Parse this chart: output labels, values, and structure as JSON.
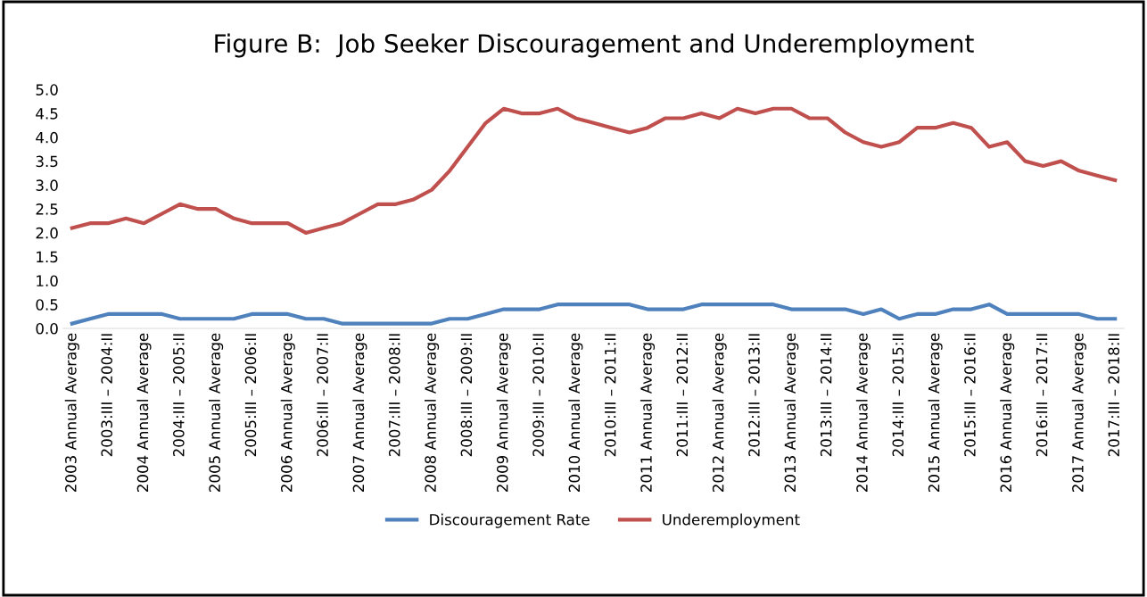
{
  "chart_data": {
    "type": "line",
    "title": "Figure B:  Job Seeker Discouragement and Underemployment",
    "categories": [
      "2003 Annual Average",
      null,
      "2003:III – 2004:II",
      null,
      "2004 Annual Average",
      null,
      "2004:III – 2005:II",
      null,
      "2005 Annual Average",
      null,
      "2005:III – 2006:II",
      null,
      "2006 Annual Average",
      null,
      "2006:III – 2007:II",
      null,
      "2007 Annual Average",
      null,
      "2007:III – 2008:II",
      null,
      "2008 Annual Average",
      null,
      "2008:III – 2009:II",
      null,
      "2009 Annual Average",
      null,
      "2009:III – 2010:II",
      null,
      "2010 Annual Average",
      null,
      "2010:III – 2011:II",
      null,
      "2011 Annual Average",
      null,
      "2011:III – 2012:II",
      null,
      "2012 Annual Average",
      null,
      "2012:III – 2013:II",
      null,
      "2013 Annual Average",
      null,
      "2013:III – 2014:II",
      null,
      "2014 Annual Average",
      null,
      "2014:III – 2015:II",
      null,
      "2015 Annual Average",
      null,
      "2015:III – 2016:II",
      null,
      "2016 Annual Average",
      null,
      "2016:III – 2017:II",
      null,
      "2017 Annual Average",
      null,
      "2017:III – 2018:II"
    ],
    "series": [
      {
        "name": "Discouragement Rate",
        "color": "#4f81bd",
        "values": [
          0.1,
          0.2,
          0.3,
          0.3,
          0.3,
          0.3,
          0.2,
          0.2,
          0.2,
          0.2,
          0.3,
          0.3,
          0.3,
          0.2,
          0.2,
          0.1,
          0.1,
          0.1,
          0.1,
          0.1,
          0.1,
          0.2,
          0.2,
          0.3,
          0.4,
          0.4,
          0.4,
          0.5,
          0.5,
          0.5,
          0.5,
          0.5,
          0.4,
          0.4,
          0.4,
          0.5,
          0.5,
          0.5,
          0.5,
          0.5,
          0.4,
          0.4,
          0.4,
          0.4,
          0.3,
          0.4,
          0.2,
          0.3,
          0.3,
          0.4,
          0.4,
          0.5,
          0.3,
          0.3,
          0.3,
          0.3,
          0.3,
          0.2,
          0.2
        ]
      },
      {
        "name": "Underemployment",
        "color": "#c0504d",
        "values": [
          2.1,
          2.2,
          2.2,
          2.3,
          2.2,
          2.4,
          2.6,
          2.5,
          2.5,
          2.3,
          2.2,
          2.2,
          2.2,
          2.0,
          2.1,
          2.2,
          2.4,
          2.6,
          2.6,
          2.7,
          2.9,
          3.3,
          3.8,
          4.3,
          4.6,
          4.5,
          4.5,
          4.6,
          4.4,
          4.3,
          4.2,
          4.1,
          4.2,
          4.4,
          4.4,
          4.5,
          4.4,
          4.6,
          4.5,
          4.6,
          4.6,
          4.4,
          4.4,
          4.1,
          3.9,
          3.8,
          3.9,
          4.2,
          4.2,
          4.3,
          4.2,
          3.8,
          3.9,
          3.5,
          3.4,
          3.5,
          3.3,
          3.2,
          3.1
        ]
      }
    ],
    "ylim": [
      0,
      5
    ],
    "yticks": [
      {
        "value": 0,
        "label": "0.0"
      },
      {
        "value": 0.5,
        "label": "0.5"
      },
      {
        "value": 1,
        "label": "1.0"
      },
      {
        "value": 1.5,
        "label": "1.5"
      },
      {
        "value": 2,
        "label": "2.0"
      },
      {
        "value": 2.5,
        "label": "2.5"
      },
      {
        "value": 3,
        "label": "3.0"
      },
      {
        "value": 3.5,
        "label": "3.5"
      },
      {
        "value": 4,
        "label": "4.0"
      },
      {
        "value": 4.5,
        "label": "4.5"
      },
      {
        "value": 5,
        "label": "5.0"
      }
    ],
    "grid": false,
    "legend": "bottom",
    "marker": "none",
    "line_style": "solid"
  }
}
